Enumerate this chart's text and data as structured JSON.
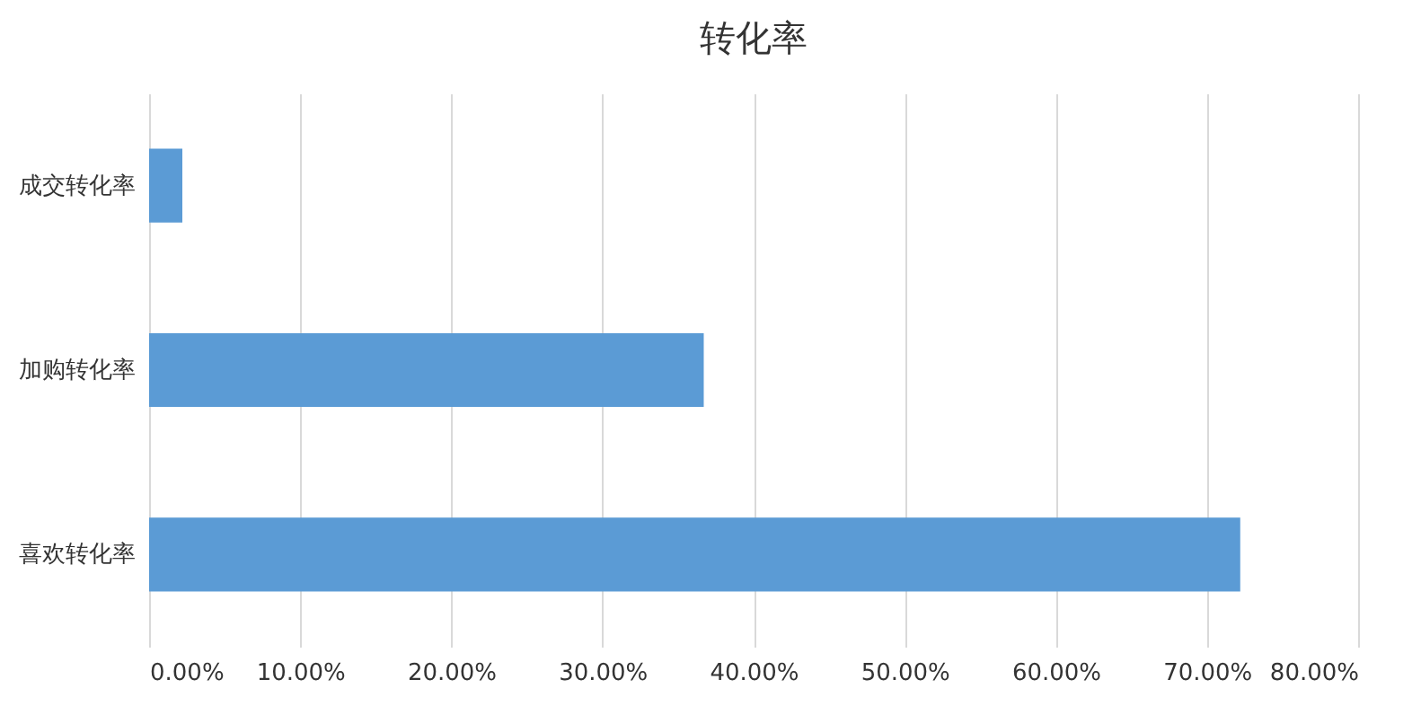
{
  "chart_data": {
    "type": "bar",
    "orientation": "horizontal",
    "title": "转化率",
    "categories": [
      "成交转化率",
      "加购转化率",
      "喜欢转化率"
    ],
    "values": [
      2.2,
      36.7,
      72.2
    ],
    "color": "#5b9bd5",
    "xlim": [
      0,
      80
    ],
    "xticks": [
      {
        "value": 0,
        "label": "0.00%"
      },
      {
        "value": 10,
        "label": "10.00%"
      },
      {
        "value": 20,
        "label": "20.00%"
      },
      {
        "value": 30,
        "label": "30.00%"
      },
      {
        "value": 40,
        "label": "40.00%"
      },
      {
        "value": 50,
        "label": "50.00%"
      },
      {
        "value": 60,
        "label": "60.00%"
      },
      {
        "value": 70,
        "label": "70.00%"
      },
      {
        "value": 80,
        "label": "80.00%"
      }
    ],
    "grid": "x"
  }
}
